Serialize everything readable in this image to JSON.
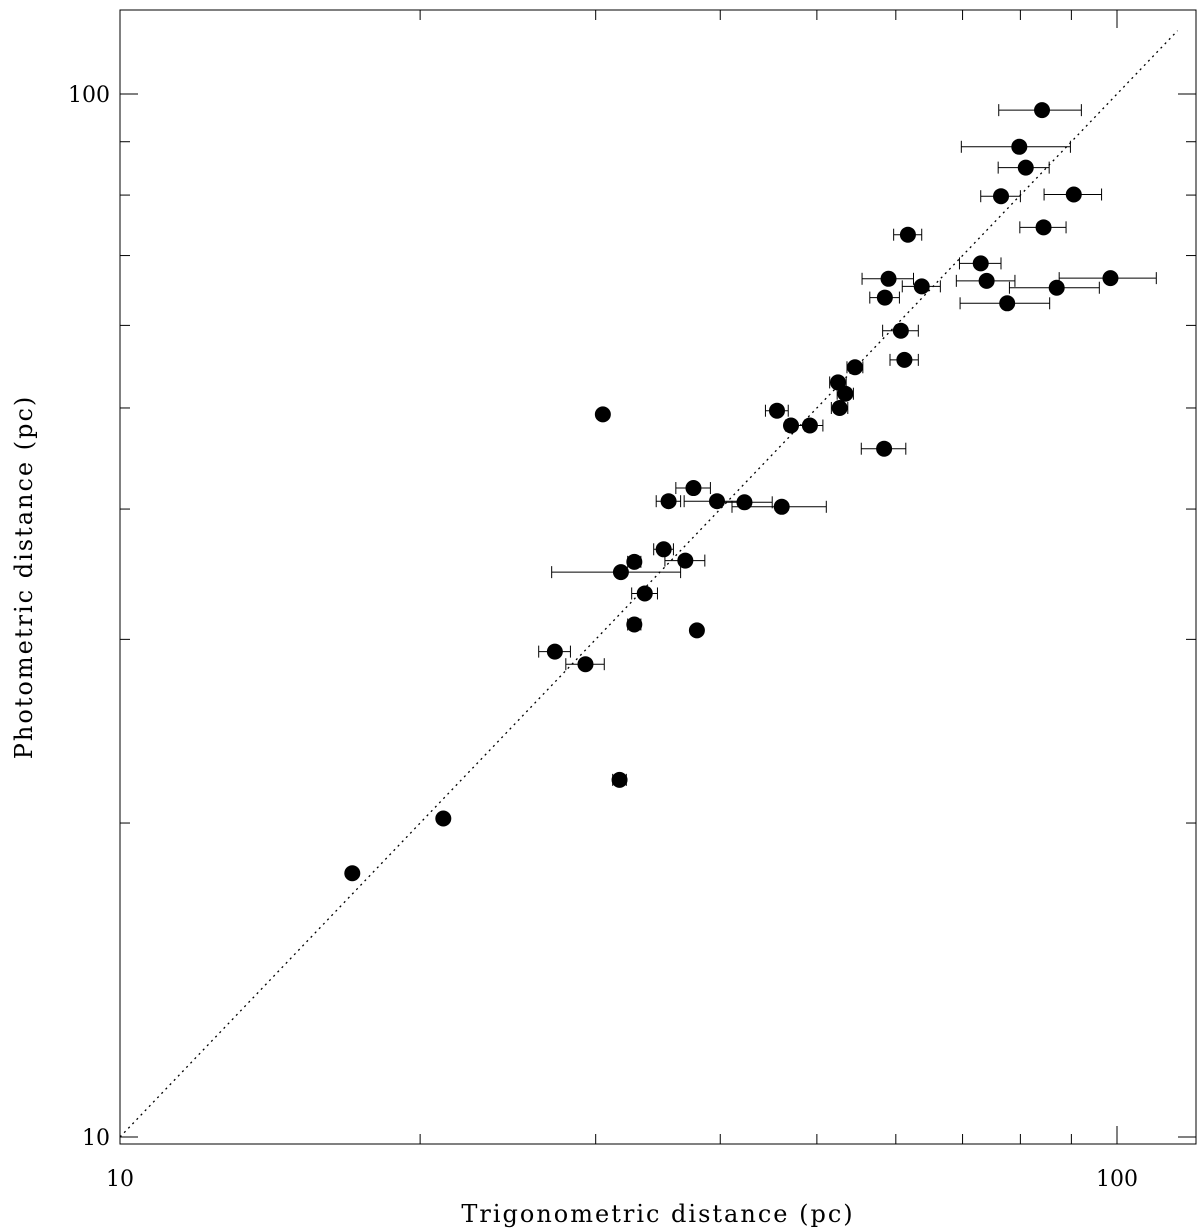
{
  "chart_data": {
    "type": "scatter",
    "title": "",
    "xlabel": "Trigonometric distance (pc)",
    "ylabel": "Photometric distance (pc)",
    "xscale": "log",
    "yscale": "log",
    "xlim": [
      10,
      115
    ],
    "ylim": [
      9.8,
      115
    ],
    "xticks": [
      {
        "value": 10,
        "label": "10"
      },
      {
        "value": 100,
        "label": "100"
      }
    ],
    "yticks": [
      {
        "value": 10,
        "label": "10"
      },
      {
        "value": 100,
        "label": "100"
      }
    ],
    "x_minor_ticks": [
      20,
      30,
      40,
      50,
      60,
      70,
      80,
      90
    ],
    "y_minor_ticks": [
      20,
      30,
      40,
      50,
      60,
      70,
      80,
      90
    ],
    "grid": false,
    "reference_line": {
      "style": "dotted",
      "relation": "y = x"
    },
    "series": [
      {
        "marker": "filled-circle",
        "color": "#000000",
        "points": [
          {
            "x": 17.1,
            "y": 17.9
          },
          {
            "x": 21.1,
            "y": 20.2
          },
          {
            "x": 27.3,
            "y": 29.2,
            "xerr_low": 1.0,
            "xerr_high": 1.0
          },
          {
            "x": 29.3,
            "y": 28.4,
            "xerr_low": 1.3,
            "xerr_high": 1.3
          },
          {
            "x": 30.5,
            "y": 49.3
          },
          {
            "x": 31.7,
            "y": 22.0,
            "xerr_low": 0.5,
            "xerr_high": 0.5
          },
          {
            "x": 31.8,
            "y": 34.8,
            "xerr_low": 4.7,
            "xerr_high": 4.7
          },
          {
            "x": 32.8,
            "y": 35.6,
            "xerr_low": 0.5,
            "xerr_high": 0.5
          },
          {
            "x": 32.8,
            "y": 31.0,
            "xerr_low": 0.5,
            "xerr_high": 0.5
          },
          {
            "x": 33.6,
            "y": 33.2,
            "xerr_low": 1.0,
            "xerr_high": 1.0
          },
          {
            "x": 35.1,
            "y": 36.6,
            "xerr_low": 0.8,
            "xerr_high": 0.8
          },
          {
            "x": 35.5,
            "y": 40.7,
            "xerr_low": 1.0,
            "xerr_high": 1.0
          },
          {
            "x": 36.9,
            "y": 35.7,
            "xerr_low": 1.7,
            "xerr_high": 1.7
          },
          {
            "x": 37.6,
            "y": 41.9,
            "xerr_low": 1.5,
            "xerr_high": 1.5
          },
          {
            "x": 37.9,
            "y": 30.6
          },
          {
            "x": 39.7,
            "y": 40.7,
            "xerr_low": 2.9,
            "xerr_high": 2.9
          },
          {
            "x": 42.3,
            "y": 40.6,
            "xerr_low": 2.8,
            "xerr_high": 2.8
          },
          {
            "x": 45.6,
            "y": 49.7,
            "xerr_low": 1.2,
            "xerr_high": 1.2
          },
          {
            "x": 46.1,
            "y": 40.2,
            "xerr_low": 5.0,
            "xerr_high": 5.0
          },
          {
            "x": 47.1,
            "y": 48.1,
            "xerr_low": 0.6,
            "xerr_high": 1.5
          },
          {
            "x": 49.2,
            "y": 48.1,
            "xerr_low": 2.3,
            "xerr_high": 1.5
          },
          {
            "x": 52.5,
            "y": 52.9,
            "xerr_low": 1.0,
            "xerr_high": 1.0
          },
          {
            "x": 52.7,
            "y": 50.0,
            "xerr_low": 1.0,
            "xerr_high": 1.0
          },
          {
            "x": 53.4,
            "y": 51.6,
            "xerr_low": 1.0,
            "xerr_high": 1.0
          },
          {
            "x": 54.6,
            "y": 54.7,
            "xerr_low": 1.0,
            "xerr_high": 1.0
          },
          {
            "x": 58.4,
            "y": 45.7,
            "xerr_low": 3.0,
            "xerr_high": 3.0
          },
          {
            "x": 58.5,
            "y": 63.8,
            "xerr_low": 2.0,
            "xerr_high": 2.0
          },
          {
            "x": 59.0,
            "y": 66.5,
            "xerr_low": 3.5,
            "xerr_high": 3.5
          },
          {
            "x": 60.7,
            "y": 59.3,
            "xerr_low": 2.5,
            "xerr_high": 2.5
          },
          {
            "x": 61.2,
            "y": 55.6,
            "xerr_low": 2.0,
            "xerr_high": 2.0
          },
          {
            "x": 61.7,
            "y": 73.3,
            "xerr_low": 2.0,
            "xerr_high": 2.0
          },
          {
            "x": 63.7,
            "y": 65.4,
            "xerr_low": 2.8,
            "xerr_high": 2.8
          },
          {
            "x": 73.0,
            "y": 68.8,
            "xerr_low": 3.5,
            "xerr_high": 3.5
          },
          {
            "x": 74.0,
            "y": 66.2,
            "xerr_low": 5.0,
            "xerr_high": 5.0
          },
          {
            "x": 76.5,
            "y": 79.8,
            "xerr_low": 3.5,
            "xerr_high": 3.5
          },
          {
            "x": 77.6,
            "y": 63.0,
            "xerr_low": 8.0,
            "xerr_high": 8.0
          },
          {
            "x": 79.8,
            "y": 89.0,
            "xerr_low": 10.0,
            "xerr_high": 10.0
          },
          {
            "x": 81.0,
            "y": 85.0,
            "xerr_low": 5.0,
            "xerr_high": 4.5
          },
          {
            "x": 84.1,
            "y": 96.5,
            "xerr_low": 8.0,
            "xerr_high": 8.0
          },
          {
            "x": 84.4,
            "y": 74.5,
            "xerr_low": 4.5,
            "xerr_high": 4.5
          },
          {
            "x": 87.0,
            "y": 65.2,
            "xerr_low": 9.0,
            "xerr_high": 9.0
          },
          {
            "x": 90.5,
            "y": 80.1,
            "xerr_low": 6.0,
            "xerr_high": 6.0
          },
          {
            "x": 98.5,
            "y": 66.6,
            "xerr_low": 11.0,
            "xerr_high": 11.0
          }
        ]
      }
    ]
  }
}
